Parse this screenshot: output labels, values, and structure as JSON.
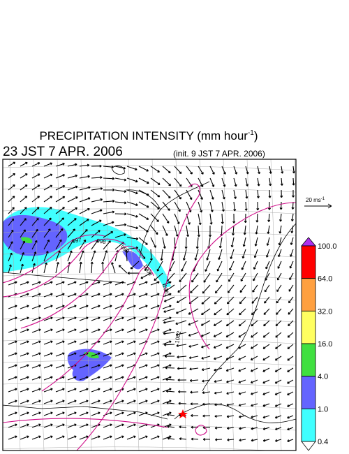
{
  "header": {
    "title_main": "PRECIPITATION INTENSITY (mm hour",
    "title_sup": "-1",
    "title_end": ")",
    "valid_time": "23 JST 7 APR. 2006",
    "init_time": "(init. 9 JST 7 APR. 2006)"
  },
  "scale_arrow": {
    "label_main": "20 ms",
    "label_sup": "-1"
  },
  "legend": {
    "levels": [
      "100.0",
      "64.0",
      "32.0",
      "16.0",
      "4.0",
      "1.0",
      "0.4"
    ],
    "colors": [
      "#ff0000",
      "#ffa040",
      "#ffff60",
      "#40e040",
      "#6464ff",
      "#40ffff"
    ]
  },
  "contours": {
    "labels": [
      "997",
      "998",
      "999",
      "1000",
      "1001",
      "1002"
    ]
  }
}
